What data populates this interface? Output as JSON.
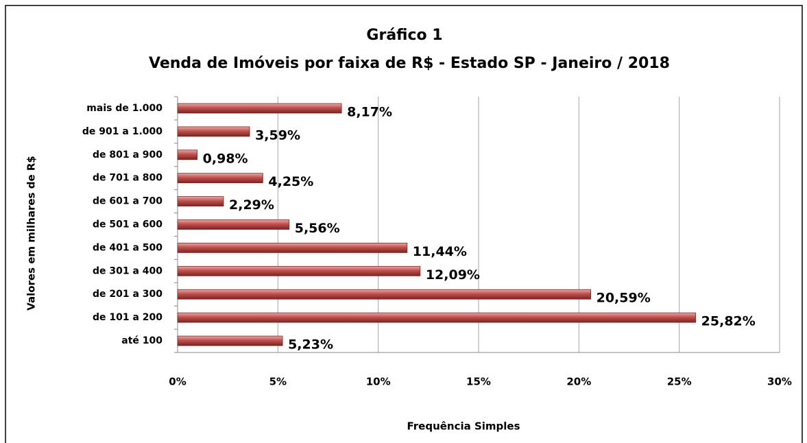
{
  "chart_data": {
    "type": "bar",
    "orientation": "horizontal",
    "title": "Gráfico 1",
    "subtitle": "Venda de Imóveis por faixa de R$ - Estado SP - Janeiro / 2018",
    "ylabel": "Valores em milhares de R$",
    "xlabel": "Frequência Simples",
    "categories": [
      "mais de 1.000",
      "de 901 a 1.000",
      "de 801 a 900",
      "de 701 a 800",
      "de 601 a 700",
      "de 501 a 600",
      "de 401 a 500",
      "de 301 a 400",
      "de 201 a 300",
      "de 101 a 200",
      "até 100"
    ],
    "values": [
      8.17,
      3.59,
      0.98,
      4.25,
      2.29,
      5.56,
      11.44,
      12.09,
      20.59,
      25.82,
      5.23
    ],
    "value_labels": [
      "8,17%",
      "3,59%",
      "0,98%",
      "4,25%",
      "2,29%",
      "5,56%",
      "11,44%",
      "12,09%",
      "20,59%",
      "25,82%",
      "5,23%"
    ],
    "color": "#c0504d",
    "xlim": [
      0,
      30
    ],
    "xticks": [
      {
        "value": 0,
        "label": "0%"
      },
      {
        "value": 5,
        "label": "5%"
      },
      {
        "value": 10,
        "label": "10%"
      },
      {
        "value": 15,
        "label": "15%"
      },
      {
        "value": 20,
        "label": "20%"
      },
      {
        "value": 25,
        "label": "25%"
      },
      {
        "value": 30,
        "label": "30%"
      }
    ],
    "grid": true
  }
}
